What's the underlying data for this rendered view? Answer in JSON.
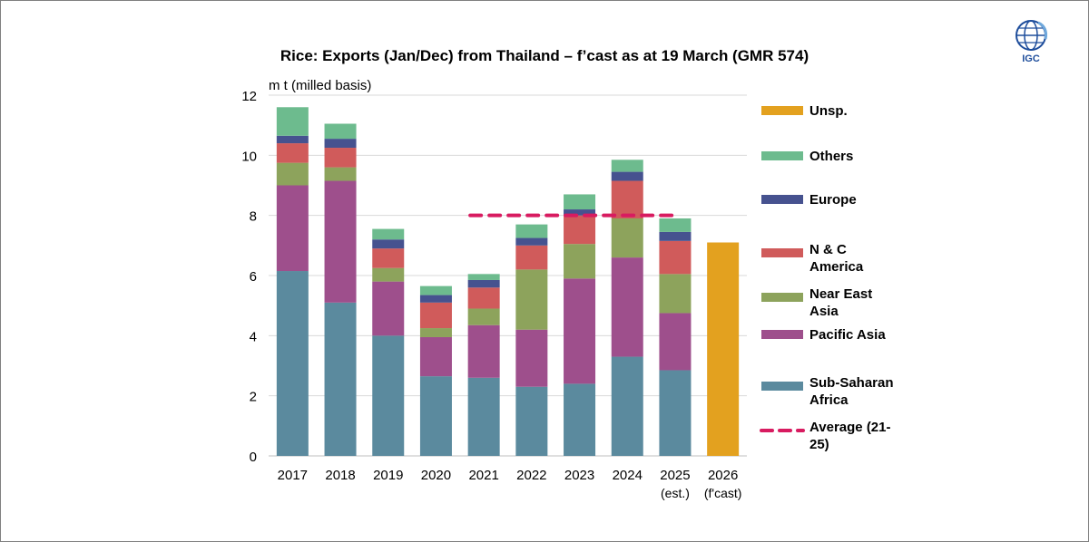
{
  "logo": {
    "text": "IGC",
    "icon": "globe-icon"
  },
  "chart_data": {
    "type": "bar",
    "stacked": true,
    "title": "Rice: Exports (Jan/Dec) from Thailand – f’cast as at 19 March (GMR 574)",
    "ylabel": "m t (milled basis)",
    "xlabel": "",
    "ylim": [
      0,
      12
    ],
    "yticks": [
      0,
      2,
      4,
      6,
      8,
      10,
      12
    ],
    "grid": true,
    "legend_position": "right",
    "categories": [
      {
        "line1": "2017",
        "line2": ""
      },
      {
        "line1": "2018",
        "line2": ""
      },
      {
        "line1": "2019",
        "line2": ""
      },
      {
        "line1": "2020",
        "line2": ""
      },
      {
        "line1": "2021",
        "line2": ""
      },
      {
        "line1": "2022",
        "line2": ""
      },
      {
        "line1": "2023",
        "line2": ""
      },
      {
        "line1": "2024",
        "line2": ""
      },
      {
        "line1": "2025",
        "line2": "(est.)"
      },
      {
        "line1": "2026",
        "line2": "(f'cast)"
      }
    ],
    "series": [
      {
        "name": "Sub-Saharan Africa",
        "color": "#5b8a9e",
        "values": [
          6.15,
          5.1,
          4.0,
          2.65,
          2.6,
          2.3,
          2.4,
          3.3,
          2.85,
          0
        ]
      },
      {
        "name": "Pacific Asia",
        "color": "#9e4f8c",
        "values": [
          2.85,
          4.05,
          1.8,
          1.3,
          1.75,
          1.9,
          3.5,
          3.3,
          1.9,
          0
        ]
      },
      {
        "name": "Near East Asia",
        "color": "#8da35c",
        "values": [
          0.75,
          0.45,
          0.45,
          0.3,
          0.55,
          2.0,
          1.15,
          1.3,
          1.3,
          0
        ]
      },
      {
        "name": "N & C America",
        "color": "#d05b5b",
        "values": [
          0.65,
          0.65,
          0.65,
          0.85,
          0.7,
          0.8,
          0.95,
          1.25,
          1.1,
          0
        ]
      },
      {
        "name": "Europe",
        "color": "#46528f",
        "values": [
          0.25,
          0.3,
          0.3,
          0.25,
          0.25,
          0.25,
          0.2,
          0.3,
          0.3,
          0
        ]
      },
      {
        "name": "Others",
        "color": "#6dbb8e",
        "values": [
          0.95,
          0.5,
          0.35,
          0.3,
          0.2,
          0.45,
          0.5,
          0.4,
          0.45,
          0
        ]
      },
      {
        "name": "Unsp.",
        "color": "#e3a11f",
        "values": [
          0,
          0,
          0,
          0,
          0,
          0,
          0,
          0,
          0,
          7.1
        ]
      }
    ],
    "legend_order": [
      "Unsp.",
      "Others",
      "Europe",
      "N & C America",
      "Near East Asia",
      "Pacific Asia",
      "Sub-Saharan Africa",
      "Average (21-25)"
    ],
    "legend_labels": {
      "Unsp.": [
        "Unsp."
      ],
      "Others": [
        "Others"
      ],
      "Europe": [
        "Europe"
      ],
      "N & C America": [
        "N & C",
        "America"
      ],
      "Near East Asia": [
        "Near East",
        "Asia"
      ],
      "Pacific Asia": [
        "Pacific Asia"
      ],
      "Sub-Saharan Africa": [
        "Sub-Saharan",
        "Africa"
      ],
      "Average (21-25)": [
        "Average (21-",
        "25)"
      ]
    },
    "average": {
      "name": "Average (21-25)",
      "value": 8.0,
      "from": "2021",
      "to": "2025",
      "color": "#d81b60",
      "style": "dashed"
    }
  }
}
